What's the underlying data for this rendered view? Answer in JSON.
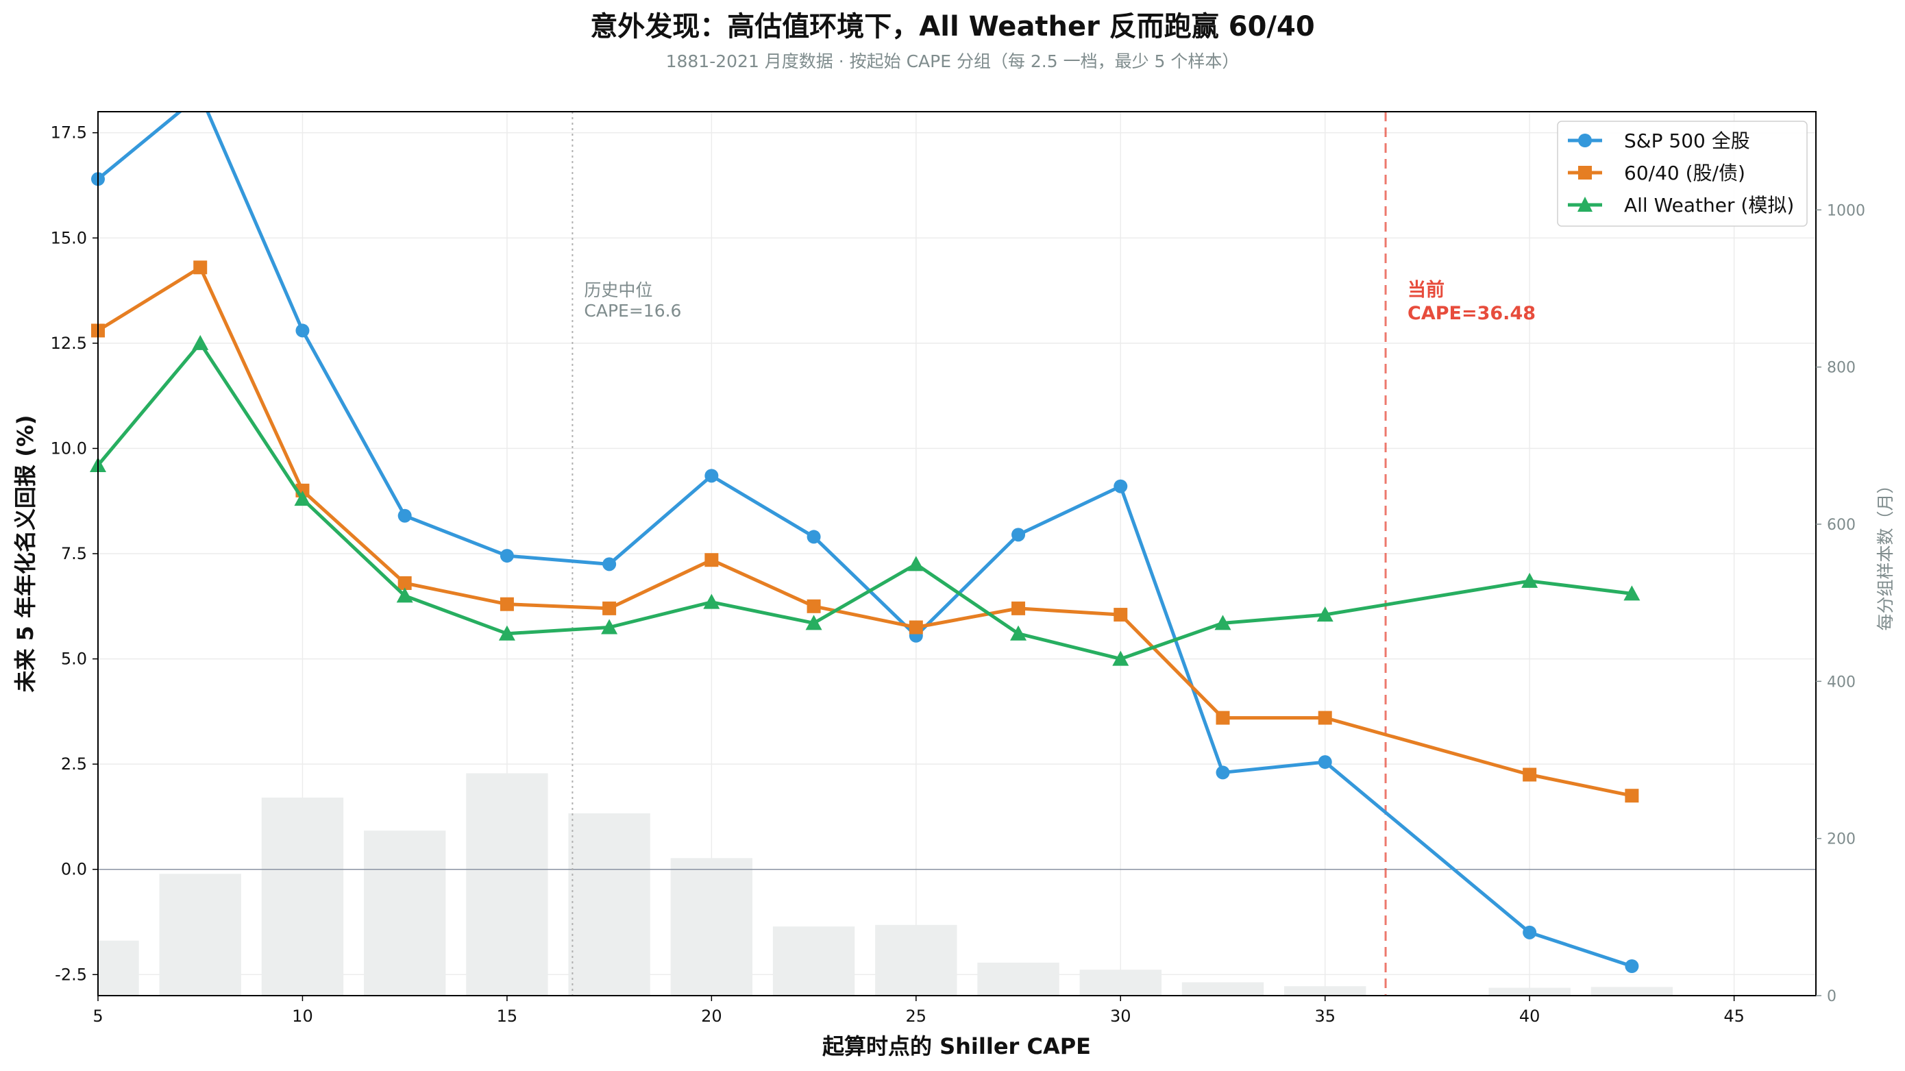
{
  "chart_data": {
    "type": "line",
    "title": "意外发现：高估值环境下，All Weather 反而跑赢 60/40",
    "subtitle": "1881-2021 月度数据 · 按起始 CAPE 分组（每 2.5 一档，最少 5 个样本）",
    "xlabel": "起算时点的 Shiller CAPE",
    "ylabel": "未来 5 年年化名义回报 (%)",
    "y2label": "每分组样本数（月）",
    "xlim": [
      5,
      47
    ],
    "ylim": [
      -3,
      18
    ],
    "y2lim": [
      0,
      1125
    ],
    "xticks": [
      5,
      10,
      15,
      20,
      25,
      30,
      35,
      40,
      45
    ],
    "yticks": [
      -2.5,
      0.0,
      2.5,
      5.0,
      7.5,
      10.0,
      12.5,
      15.0,
      17.5
    ],
    "ytick_labels": [
      "-2.5",
      "0.0",
      "2.5",
      "5.0",
      "7.5",
      "10.0",
      "12.5",
      "15.0",
      "17.5"
    ],
    "y2ticks": [
      0,
      200,
      400,
      600,
      800,
      1000
    ],
    "grid": true,
    "legend_position": "top-right",
    "colors": {
      "sp500": "#3498db",
      "sixty_forty": "#e67e22",
      "all_weather": "#27ae60",
      "bars": "#eceeee",
      "current": "#e74c3c",
      "median": "#b0b0b0",
      "zero_line": "#8a93a3",
      "right_axis": "#7f8c8d"
    },
    "series": [
      {
        "name": "S&P 500 全股",
        "marker": "circle",
        "color": "#3498db",
        "x": [
          5,
          7.5,
          10,
          12.5,
          15,
          17.5,
          20,
          22.5,
          25,
          27.5,
          30,
          32.5,
          35,
          40,
          42.5
        ],
        "values": [
          16.4,
          18.4,
          12.8,
          8.4,
          7.45,
          7.25,
          9.35,
          7.9,
          5.55,
          7.95,
          9.1,
          2.3,
          2.55,
          -1.5,
          -2.3
        ]
      },
      {
        "name": "60/40 (股/债)",
        "marker": "square",
        "color": "#e67e22",
        "x": [
          5,
          7.5,
          10,
          12.5,
          15,
          17.5,
          20,
          22.5,
          25,
          27.5,
          30,
          32.5,
          35,
          40,
          42.5
        ],
        "values": [
          12.8,
          14.3,
          9.0,
          6.8,
          6.3,
          6.2,
          7.35,
          6.25,
          5.75,
          6.2,
          6.05,
          3.6,
          3.6,
          2.25,
          1.75
        ]
      },
      {
        "name": "All Weather (模拟)",
        "marker": "triangle",
        "color": "#27ae60",
        "x": [
          5,
          7.5,
          10,
          12.5,
          15,
          17.5,
          20,
          22.5,
          25,
          27.5,
          30,
          32.5,
          35,
          40,
          42.5
        ],
        "values": [
          9.6,
          12.5,
          8.8,
          6.5,
          5.6,
          5.75,
          6.35,
          5.85,
          7.25,
          5.6,
          5.0,
          5.85,
          6.05,
          6.85,
          6.55
        ]
      }
    ],
    "sample_bars": {
      "x": [
        5,
        7.5,
        10,
        12.5,
        15,
        17.5,
        20,
        22.5,
        25,
        27.5,
        30,
        32.5,
        35,
        40,
        42.5
      ],
      "counts": [
        70,
        155,
        252,
        210,
        283,
        232,
        175,
        88,
        90,
        42,
        33,
        17,
        12,
        10,
        11
      ]
    },
    "annotations": {
      "median": {
        "line1": "历史中位",
        "line2": "CAPE=16.6",
        "x": 16.6
      },
      "current": {
        "line1": "当前",
        "line2": "CAPE=36.48",
        "x": 36.48
      }
    }
  }
}
